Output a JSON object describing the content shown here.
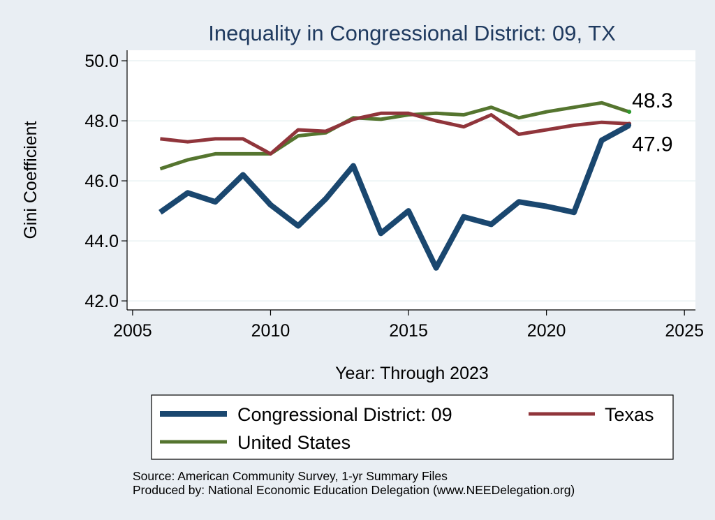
{
  "chart_data": {
    "type": "line",
    "title": "Inequality in Congressional District:  09, TX",
    "xlabel": "Year: Through 2023",
    "ylabel": "Gini Coefficient",
    "xlim": [
      2004.8,
      2025.4
    ],
    "ylim": [
      41.7,
      50.35
    ],
    "xticks": [
      2005,
      2010,
      2015,
      2020,
      2025
    ],
    "yticks": [
      42.0,
      44.0,
      46.0,
      48.0,
      50.0
    ],
    "ytick_labels": [
      "42.0",
      "44.0",
      "46.0",
      "48.0",
      "50.0"
    ],
    "grid": true,
    "legend_position": "bottom",
    "series": [
      {
        "name": "Congressional District:  09",
        "color": "#1a476f",
        "x": [
          2006,
          2007,
          2008,
          2009,
          2010,
          2011,
          2012,
          2013,
          2014,
          2015,
          2016,
          2017,
          2018,
          2019,
          2020,
          2021,
          2022,
          2023
        ],
        "y": [
          44.95,
          45.6,
          45.3,
          46.2,
          45.2,
          44.5,
          45.4,
          46.5,
          44.25,
          45.0,
          43.1,
          44.8,
          44.55,
          45.3,
          45.15,
          44.95,
          47.35,
          47.85
        ],
        "end_label": "47.9"
      },
      {
        "name": "Texas",
        "color": "#90353b",
        "x": [
          2006,
          2007,
          2008,
          2009,
          2010,
          2011,
          2012,
          2013,
          2014,
          2015,
          2016,
          2017,
          2018,
          2019,
          2020,
          2021,
          2022,
          2023
        ],
        "y": [
          47.4,
          47.3,
          47.4,
          47.4,
          46.9,
          47.7,
          47.65,
          48.05,
          48.25,
          48.25,
          48.0,
          47.8,
          48.2,
          47.55,
          47.7,
          47.85,
          47.95,
          47.9
        ],
        "end_label": ""
      },
      {
        "name": "United States",
        "color": "#55752f",
        "x": [
          2006,
          2007,
          2008,
          2009,
          2010,
          2011,
          2012,
          2013,
          2014,
          2015,
          2016,
          2017,
          2018,
          2019,
          2020,
          2021,
          2022,
          2023
        ],
        "y": [
          46.4,
          46.7,
          46.9,
          46.9,
          46.9,
          47.5,
          47.6,
          48.1,
          48.05,
          48.2,
          48.25,
          48.2,
          48.45,
          48.1,
          48.3,
          48.45,
          48.6,
          48.3
        ],
        "end_label": "48.3"
      }
    ],
    "legend": [
      {
        "label": "Congressional District:  09",
        "series": 0
      },
      {
        "label": "Texas",
        "series": 1
      },
      {
        "label": "United States",
        "series": 2
      }
    ]
  },
  "footer": {
    "source_line": "Source: American Community Survey, 1-yr Summary Files",
    "produced_line": "Produced by: National Economic Education Delegation (www.NEEDelegation.org)"
  }
}
